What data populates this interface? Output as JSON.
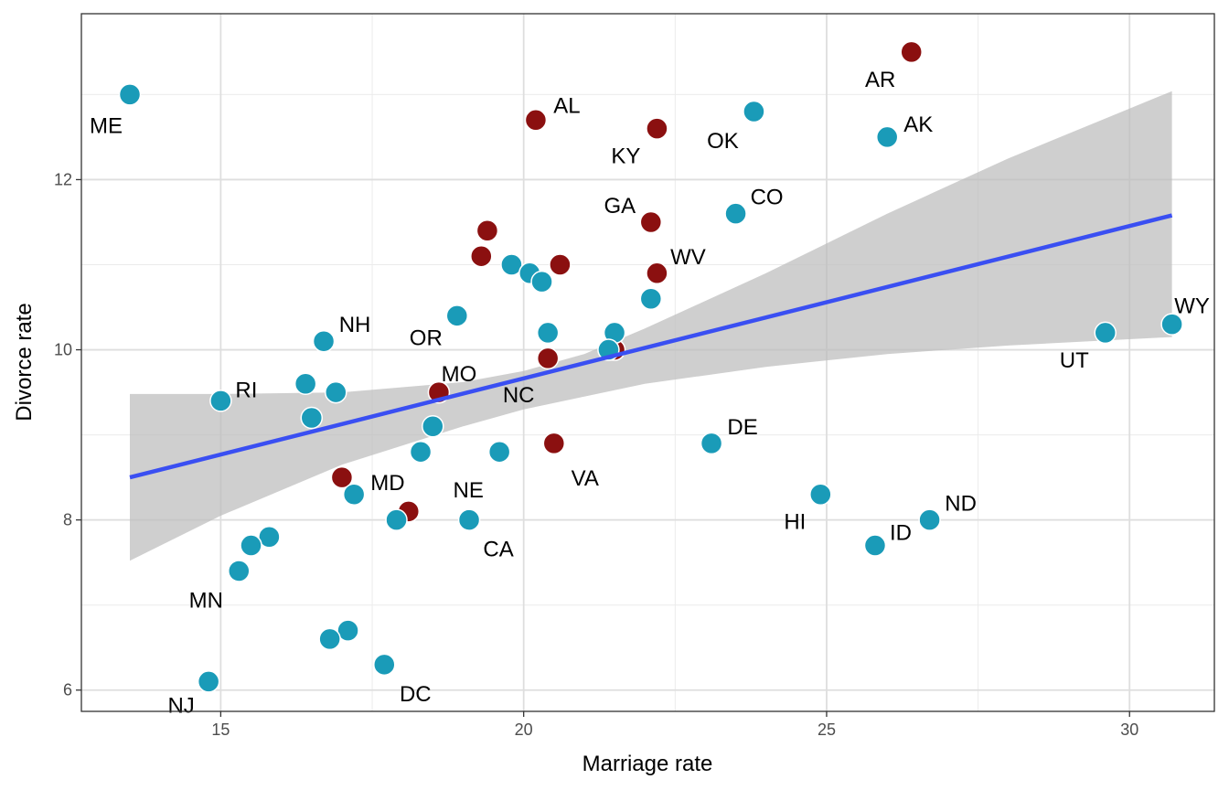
{
  "chart_data": {
    "type": "scatter",
    "xlabel": "Marriage rate",
    "ylabel": "Divorce rate",
    "xlim": [
      12.7,
      31.4
    ],
    "ylim": [
      5.75,
      13.95
    ],
    "x_ticks": [
      15,
      20,
      25,
      30
    ],
    "x_tick_labels": [
      "15",
      "20",
      "25",
      "30"
    ],
    "y_ticks": [
      6,
      8,
      10,
      12
    ],
    "y_tick_labels": [
      "6",
      "8",
      "10",
      "12"
    ],
    "x_minor": [
      12.5,
      17.5,
      22.5,
      27.5
    ],
    "y_minor": [
      7,
      9,
      11,
      13
    ],
    "grid": true,
    "colors": {
      "teal": "#1a9bb8",
      "darkred": "#8b1010",
      "fit_line": "#3a4ff2",
      "ribbon": "#bdbdbd"
    },
    "fit_line": {
      "x": [
        13.5,
        30.7
      ],
      "y": [
        8.5,
        11.58
      ]
    },
    "confidence_band": {
      "x": [
        13.5,
        15,
        17,
        19,
        20,
        21,
        22,
        24,
        26,
        28,
        30.7
      ],
      "lower": [
        7.52,
        8.05,
        8.65,
        9.1,
        9.3,
        9.45,
        9.6,
        9.8,
        9.95,
        10.05,
        10.15
      ],
      "upper": [
        9.48,
        9.48,
        9.5,
        9.62,
        9.75,
        9.95,
        10.25,
        10.9,
        11.6,
        12.25,
        13.04
      ]
    },
    "points": [
      {
        "x": 13.5,
        "y": 13.0,
        "label": "ME",
        "color": "teal"
      },
      {
        "x": 15.0,
        "y": 9.4,
        "label": "RI",
        "color": "teal"
      },
      {
        "x": 16.7,
        "y": 10.1,
        "label": "NH",
        "color": "teal"
      },
      {
        "x": 16.4,
        "y": 9.6,
        "label": "",
        "color": "teal"
      },
      {
        "x": 16.9,
        "y": 9.5,
        "label": "",
        "color": "teal"
      },
      {
        "x": 16.5,
        "y": 9.2,
        "label": "",
        "color": "teal"
      },
      {
        "x": 18.9,
        "y": 10.4,
        "label": "OR",
        "color": "teal"
      },
      {
        "x": 18.6,
        "y": 9.5,
        "label": "MO",
        "color": "darkred"
      },
      {
        "x": 18.5,
        "y": 9.1,
        "label": "",
        "color": "teal"
      },
      {
        "x": 18.3,
        "y": 8.8,
        "label": "",
        "color": "teal"
      },
      {
        "x": 17.0,
        "y": 8.5,
        "label": "MD",
        "color": "darkred"
      },
      {
        "x": 17.2,
        "y": 8.3,
        "label": "",
        "color": "teal"
      },
      {
        "x": 18.1,
        "y": 8.1,
        "label": "",
        "color": "darkred"
      },
      {
        "x": 17.9,
        "y": 8.0,
        "label": "",
        "color": "teal"
      },
      {
        "x": 19.1,
        "y": 8.0,
        "label": "CA",
        "color": "teal"
      },
      {
        "x": 15.8,
        "y": 7.8,
        "label": "",
        "color": "teal"
      },
      {
        "x": 15.5,
        "y": 7.7,
        "label": "",
        "color": "teal"
      },
      {
        "x": 15.3,
        "y": 7.4,
        "label": "MN",
        "color": "teal"
      },
      {
        "x": 17.1,
        "y": 6.7,
        "label": "",
        "color": "teal"
      },
      {
        "x": 16.8,
        "y": 6.6,
        "label": "",
        "color": "teal"
      },
      {
        "x": 17.7,
        "y": 6.3,
        "label": "DC",
        "color": "teal"
      },
      {
        "x": 14.8,
        "y": 6.1,
        "label": "NJ",
        "color": "teal"
      },
      {
        "x": 19.6,
        "y": 8.8,
        "label": "NE",
        "color": "teal"
      },
      {
        "x": 20.5,
        "y": 8.9,
        "label": "VA",
        "color": "darkred"
      },
      {
        "x": 20.4,
        "y": 9.9,
        "label": "NC",
        "color": "darkred"
      },
      {
        "x": 20.4,
        "y": 10.2,
        "label": "",
        "color": "teal"
      },
      {
        "x": 21.5,
        "y": 10.0,
        "label": "",
        "color": "darkred"
      },
      {
        "x": 21.5,
        "y": 10.2,
        "label": "",
        "color": "teal"
      },
      {
        "x": 21.4,
        "y": 10.0,
        "label": "",
        "color": "teal"
      },
      {
        "x": 19.3,
        "y": 11.1,
        "label": "",
        "color": "darkred"
      },
      {
        "x": 19.4,
        "y": 11.4,
        "label": "",
        "color": "darkred"
      },
      {
        "x": 19.8,
        "y": 11.0,
        "label": "",
        "color": "teal"
      },
      {
        "x": 20.1,
        "y": 10.9,
        "label": "",
        "color": "teal"
      },
      {
        "x": 20.3,
        "y": 10.8,
        "label": "",
        "color": "teal"
      },
      {
        "x": 20.6,
        "y": 11.0,
        "label": "",
        "color": "darkred"
      },
      {
        "x": 22.1,
        "y": 10.6,
        "label": "",
        "color": "teal"
      },
      {
        "x": 22.2,
        "y": 10.9,
        "label": "WV",
        "color": "darkred"
      },
      {
        "x": 22.1,
        "y": 11.5,
        "label": "GA",
        "color": "darkred"
      },
      {
        "x": 20.2,
        "y": 12.7,
        "label": "AL",
        "color": "darkred"
      },
      {
        "x": 22.2,
        "y": 12.6,
        "label": "KY",
        "color": "darkred"
      },
      {
        "x": 23.8,
        "y": 12.8,
        "label": "OK",
        "color": "teal"
      },
      {
        "x": 23.5,
        "y": 11.6,
        "label": "CO",
        "color": "teal"
      },
      {
        "x": 23.1,
        "y": 8.9,
        "label": "DE",
        "color": "teal"
      },
      {
        "x": 24.9,
        "y": 8.3,
        "label": "HI",
        "color": "teal"
      },
      {
        "x": 25.8,
        "y": 7.7,
        "label": "ID",
        "color": "teal"
      },
      {
        "x": 26.7,
        "y": 8.0,
        "label": "ND",
        "color": "teal"
      },
      {
        "x": 26.0,
        "y": 12.5,
        "label": "AK",
        "color": "teal"
      },
      {
        "x": 26.4,
        "y": 13.5,
        "label": "AR",
        "color": "darkred"
      },
      {
        "x": 29.6,
        "y": 10.2,
        "label": "UT",
        "color": "teal"
      },
      {
        "x": 30.7,
        "y": 10.3,
        "label": "WY",
        "color": "teal"
      }
    ]
  }
}
